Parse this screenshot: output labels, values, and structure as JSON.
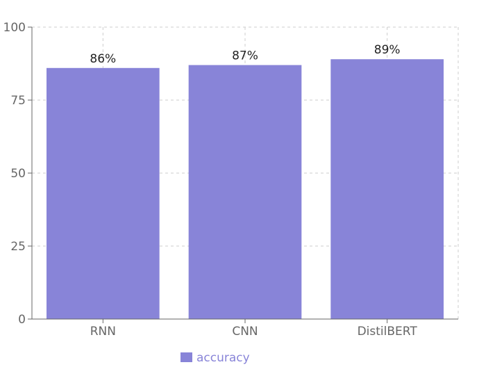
{
  "chart_data": {
    "type": "bar",
    "categories": [
      "RNN",
      "CNN",
      "DistilBERT"
    ],
    "series": [
      {
        "name": "accuracy",
        "values": [
          86,
          87,
          89
        ],
        "color": "#8884d8"
      }
    ],
    "data_labels": [
      "86%",
      "87%",
      "89%"
    ],
    "ylim": [
      0,
      100
    ],
    "yticks": [
      0,
      25,
      50,
      75,
      100
    ],
    "grid": true,
    "legend_position": "bottom-center"
  },
  "legend": {
    "label": "accuracy",
    "color": "#8884d8"
  }
}
